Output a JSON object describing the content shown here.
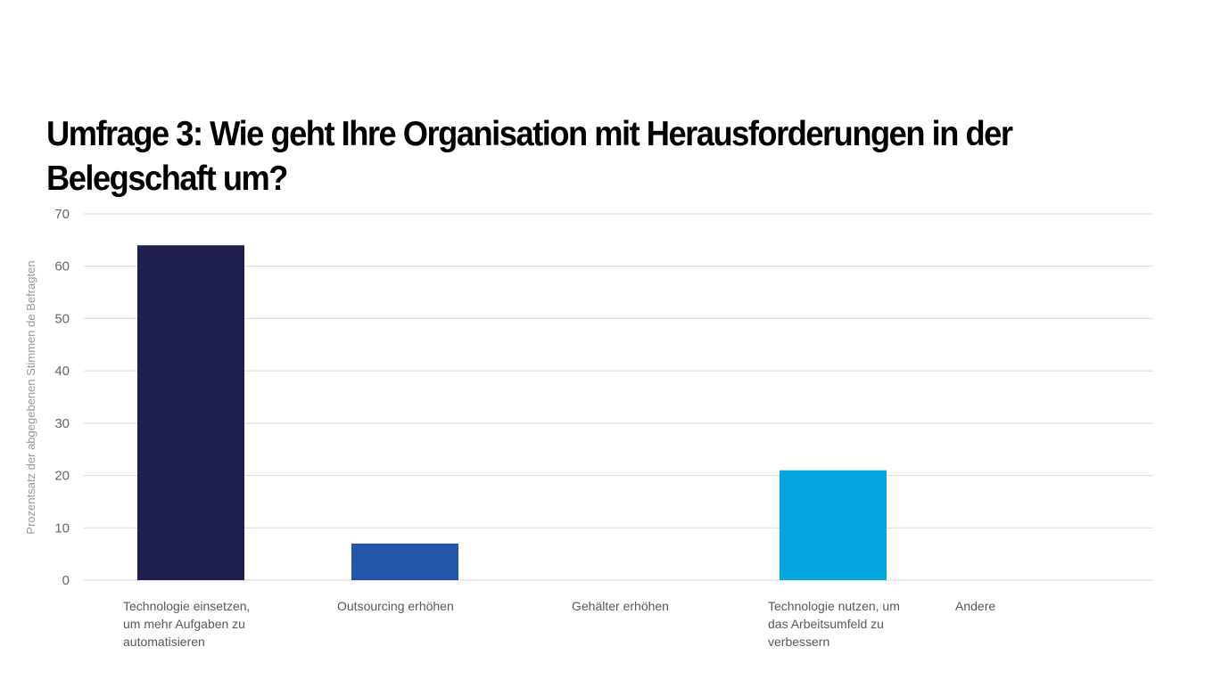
{
  "chart_data": {
    "type": "bar",
    "title": "Umfrage 3: Wie geht Ihre Organisation mit Herausforderungen in der Belegschaft um?",
    "ylabel": "Prozentsatz der abgegebenen Stimmen de Befragten",
    "xlabel": "",
    "ylim": [
      0,
      70
    ],
    "yticks": [
      0,
      10,
      20,
      30,
      40,
      50,
      60,
      70
    ],
    "grid": true,
    "categories": [
      "Technologie einsetzen, um mehr Aufgaben zu automatisieren",
      "Outsourcing erhöhen",
      "Gehälter erhöhen",
      "Technologie nutzen, um das Arbeitsumfeld zu verbessern",
      "Andere"
    ],
    "category_lines": [
      [
        "Technologie einsetzen,",
        "um mehr Aufgaben zu",
        "automatisieren"
      ],
      [
        "Outsourcing erhöhen"
      ],
      [
        "Gehälter erhöhen"
      ],
      [
        "Technologie nutzen, um",
        "das Arbeitsumfeld zu",
        "verbessern"
      ],
      [
        "Andere"
      ]
    ],
    "values": [
      64,
      7,
      0,
      21,
      0
    ],
    "colors": [
      "#1f1f4d",
      "#2356a8",
      "#2b7fd0",
      "#05a6df",
      "#7f7f7f"
    ]
  }
}
